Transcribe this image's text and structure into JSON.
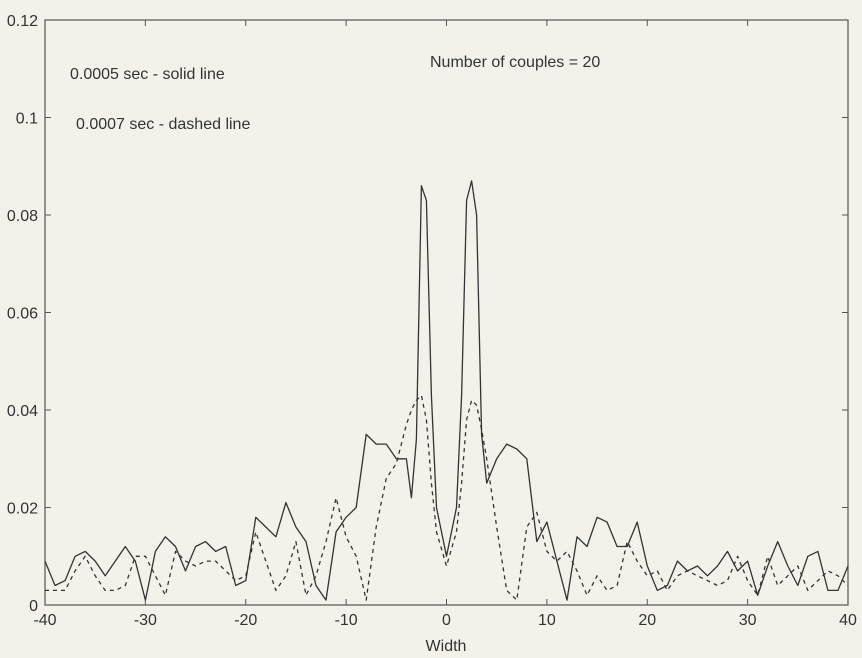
{
  "chart_data": {
    "type": "line",
    "xlabel": "Width",
    "ylabel": "",
    "xlim": [
      -40,
      40
    ],
    "ylim": [
      0,
      0.12
    ],
    "xticks": [
      -40,
      -30,
      -20,
      -10,
      0,
      10,
      20,
      30,
      40
    ],
    "yticks": [
      0,
      0.02,
      0.04,
      0.06,
      0.08,
      0.1,
      0.12
    ],
    "xtick_labels": [
      "-40",
      "-30",
      "-20",
      "-10",
      "0",
      "10",
      "20",
      "30",
      "40"
    ],
    "ytick_labels": [
      "0",
      "0.02",
      "0.04",
      "0.06",
      "0.08",
      "0.1",
      "0.12"
    ],
    "grid": false,
    "annotations": [
      {
        "text": "0.0005 sec - solid line"
      },
      {
        "text": "0.0007 sec - dashed line"
      },
      {
        "text": "Number of couples = 20"
      }
    ],
    "series": [
      {
        "style": "solid",
        "color": "#333333",
        "x": [
          -40,
          -39,
          -38,
          -37,
          -36,
          -35,
          -34,
          -33,
          -32,
          -31,
          -30,
          -29,
          -28,
          -27,
          -26,
          -25,
          -24,
          -23,
          -22,
          -21,
          -20,
          -19,
          -18,
          -17,
          -16,
          -15,
          -14,
          -13,
          -12,
          -11,
          -10,
          -9,
          -8,
          -7,
          -6,
          -5,
          -4,
          -3.5,
          -3,
          -2.5,
          -2,
          -1.5,
          -1,
          0,
          1,
          1.5,
          2,
          2.5,
          3,
          3.5,
          4,
          5,
          6,
          7,
          8,
          9,
          10,
          11,
          12,
          13,
          14,
          15,
          16,
          17,
          18,
          19,
          20,
          21,
          22,
          23,
          24,
          25,
          26,
          27,
          28,
          29,
          30,
          31,
          32,
          33,
          34,
          35,
          36,
          37,
          38,
          39,
          40
        ],
        "y": [
          0.009,
          0.004,
          0.005,
          0.01,
          0.011,
          0.009,
          0.006,
          0.009,
          0.012,
          0.009,
          0.001,
          0.011,
          0.014,
          0.012,
          0.007,
          0.012,
          0.013,
          0.011,
          0.012,
          0.004,
          0.005,
          0.018,
          0.016,
          0.014,
          0.021,
          0.016,
          0.013,
          0.004,
          0.001,
          0.015,
          0.018,
          0.02,
          0.035,
          0.033,
          0.033,
          0.03,
          0.03,
          0.022,
          0.034,
          0.086,
          0.083,
          0.043,
          0.02,
          0.01,
          0.02,
          0.043,
          0.083,
          0.087,
          0.08,
          0.035,
          0.025,
          0.03,
          0.033,
          0.032,
          0.03,
          0.013,
          0.017,
          0.009,
          0.001,
          0.014,
          0.012,
          0.018,
          0.017,
          0.012,
          0.012,
          0.017,
          0.008,
          0.003,
          0.004,
          0.009,
          0.007,
          0.008,
          0.006,
          0.008,
          0.011,
          0.007,
          0.009,
          0.002,
          0.008,
          0.013,
          0.008,
          0.004,
          0.01,
          0.011,
          0.003,
          0.003,
          0.008
        ]
      },
      {
        "style": "dashed",
        "color": "#333333",
        "x": [
          -40,
          -39,
          -38,
          -37,
          -36,
          -35,
          -34,
          -33,
          -32,
          -31,
          -30,
          -29,
          -28,
          -27,
          -26,
          -25,
          -24,
          -23,
          -22,
          -21,
          -20,
          -19,
          -18,
          -17,
          -16,
          -15,
          -14,
          -13,
          -12,
          -11,
          -10,
          -9,
          -8,
          -7,
          -6,
          -5,
          -4,
          -3.5,
          -3,
          -2.5,
          -2,
          -1.5,
          -1,
          0,
          1,
          1.5,
          2,
          2.5,
          3,
          3.5,
          4,
          5,
          6,
          7,
          8,
          9,
          10,
          11,
          12,
          13,
          14,
          15,
          16,
          17,
          18,
          19,
          20,
          21,
          22,
          23,
          24,
          25,
          26,
          27,
          28,
          29,
          30,
          31,
          32,
          33,
          34,
          35,
          36,
          37,
          38,
          39,
          40
        ],
        "y": [
          0.003,
          0.003,
          0.003,
          0.007,
          0.01,
          0.006,
          0.003,
          0.003,
          0.004,
          0.01,
          0.01,
          0.006,
          0.002,
          0.011,
          0.009,
          0.008,
          0.009,
          0.009,
          0.007,
          0.005,
          0.006,
          0.015,
          0.009,
          0.003,
          0.006,
          0.013,
          0.002,
          0.006,
          0.013,
          0.022,
          0.014,
          0.01,
          0.001,
          0.016,
          0.026,
          0.029,
          0.037,
          0.04,
          0.042,
          0.043,
          0.038,
          0.025,
          0.015,
          0.008,
          0.015,
          0.025,
          0.038,
          0.042,
          0.041,
          0.036,
          0.03,
          0.016,
          0.003,
          0.001,
          0.016,
          0.019,
          0.011,
          0.009,
          0.011,
          0.007,
          0.002,
          0.006,
          0.003,
          0.004,
          0.013,
          0.009,
          0.006,
          0.007,
          0.003,
          0.006,
          0.007,
          0.006,
          0.005,
          0.004,
          0.005,
          0.01,
          0.005,
          0.002,
          0.01,
          0.004,
          0.006,
          0.008,
          0.003,
          0.005,
          0.007,
          0.006,
          0.004
        ]
      }
    ]
  }
}
